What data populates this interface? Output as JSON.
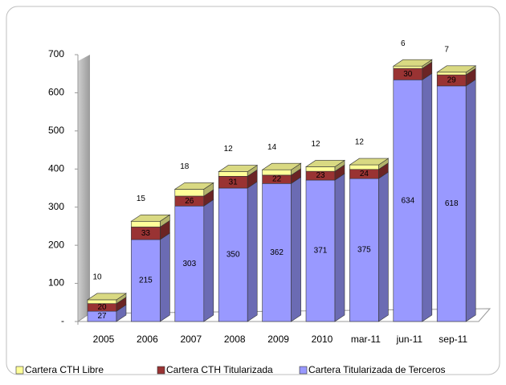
{
  "chart_data": {
    "type": "bar3d_stacked",
    "categories": [
      "2005",
      "2006",
      "2007",
      "2008",
      "2009",
      "2010",
      "mar-11",
      "jun-11",
      "sep-11"
    ],
    "series": [
      {
        "name": "Cartera CTH Libre",
        "color": "#ffff99",
        "values": [
          10,
          15,
          18,
          12,
          14,
          12,
          12,
          6,
          7
        ]
      },
      {
        "name": "Cartera CTH Titularizada",
        "color": "#993333",
        "values": [
          20,
          33,
          26,
          31,
          22,
          23,
          24,
          30,
          29
        ]
      },
      {
        "name": "Cartera Titularizada de Terceros",
        "color": "#9999ff",
        "values": [
          27,
          215,
          303,
          350,
          362,
          371,
          375,
          634,
          618
        ]
      }
    ],
    "ylim": [
      0,
      700
    ],
    "yticks": [
      {
        "value": 0,
        "label": "-"
      },
      100,
      200,
      300,
      400,
      500,
      600,
      700
    ],
    "legend": "bottom"
  }
}
